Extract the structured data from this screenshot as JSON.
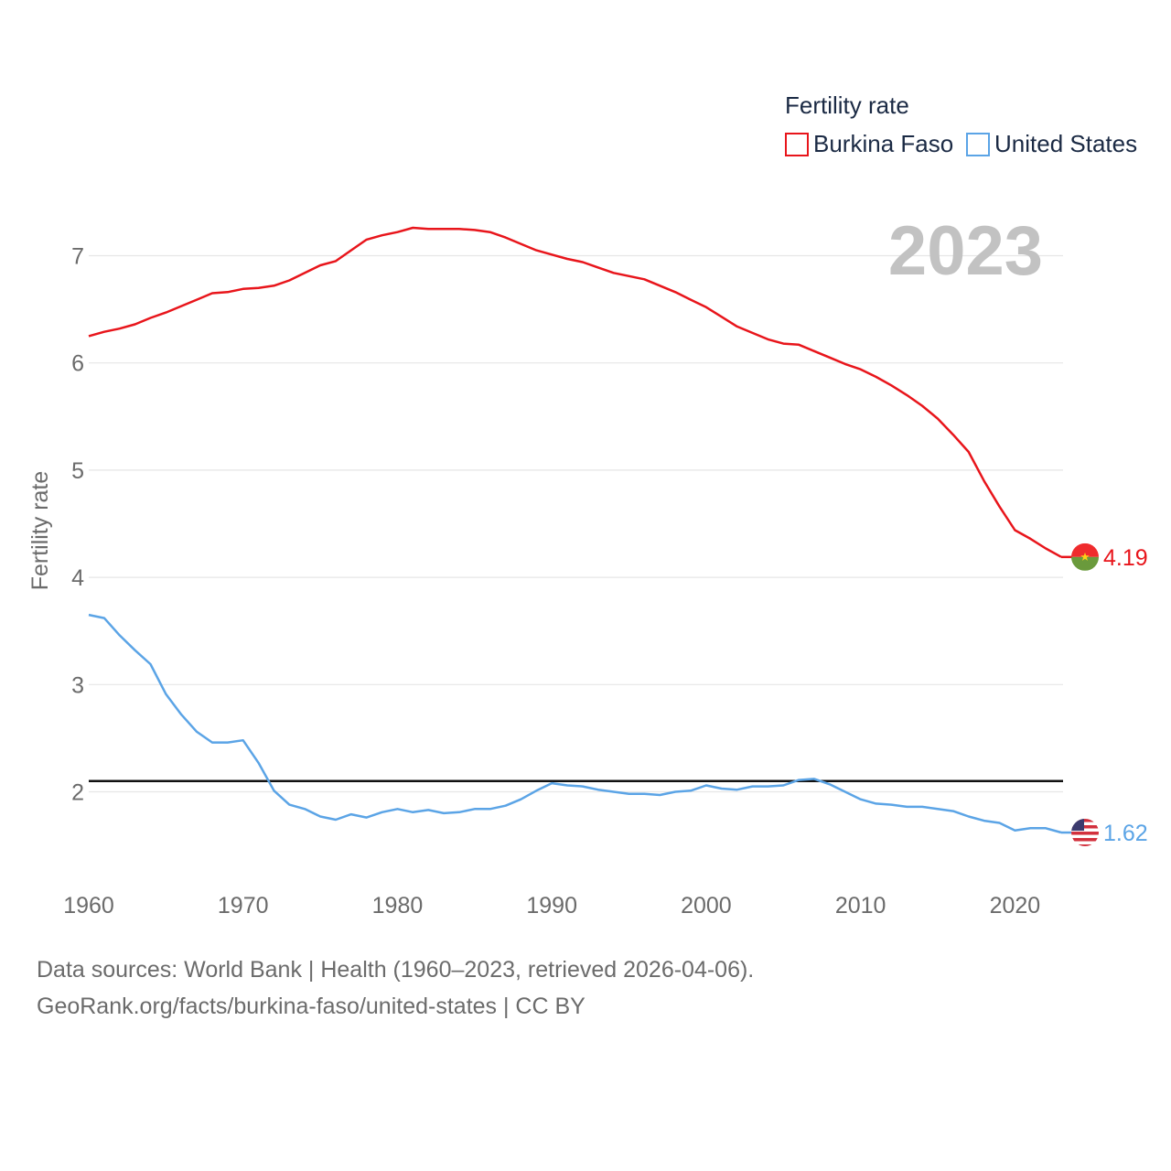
{
  "chart_data": {
    "type": "line",
    "title": "",
    "legend_title": "Fertility rate",
    "legend_position": "top-right",
    "year_label": "2023",
    "xlabel": "",
    "ylabel": "Fertility rate",
    "xlim": [
      1960,
      2023
    ],
    "ylim": [
      1.2,
      7.6
    ],
    "x_ticks": [
      1960,
      1970,
      1980,
      1990,
      2000,
      2010,
      2020
    ],
    "y_ticks": [
      2,
      3,
      4,
      5,
      6,
      7
    ],
    "reference_line": 2.1,
    "grid": true,
    "x": [
      1960,
      1961,
      1962,
      1963,
      1964,
      1965,
      1966,
      1967,
      1968,
      1969,
      1970,
      1971,
      1972,
      1973,
      1974,
      1975,
      1976,
      1977,
      1978,
      1979,
      1980,
      1981,
      1982,
      1983,
      1984,
      1985,
      1986,
      1987,
      1988,
      1989,
      1990,
      1991,
      1992,
      1993,
      1994,
      1995,
      1996,
      1997,
      1998,
      1999,
      2000,
      2001,
      2002,
      2003,
      2004,
      2005,
      2006,
      2007,
      2008,
      2009,
      2010,
      2011,
      2012,
      2013,
      2014,
      2015,
      2016,
      2017,
      2018,
      2019,
      2020,
      2021,
      2022,
      2023
    ],
    "series": [
      {
        "name": "Burkina Faso",
        "color": "#e8151b",
        "end_label": "4.19",
        "values": [
          6.25,
          6.29,
          6.32,
          6.36,
          6.42,
          6.47,
          6.53,
          6.59,
          6.65,
          6.66,
          6.69,
          6.7,
          6.72,
          6.77,
          6.84,
          6.91,
          6.95,
          7.05,
          7.15,
          7.19,
          7.22,
          7.26,
          7.25,
          7.25,
          7.25,
          7.24,
          7.22,
          7.17,
          7.11,
          7.05,
          7.01,
          6.97,
          6.94,
          6.89,
          6.84,
          6.81,
          6.78,
          6.72,
          6.66,
          6.59,
          6.52,
          6.43,
          6.34,
          6.28,
          6.22,
          6.18,
          6.17,
          6.11,
          6.05,
          5.99,
          5.94,
          5.87,
          5.79,
          5.7,
          5.6,
          5.48,
          5.33,
          5.17,
          4.9,
          4.66,
          4.44,
          4.36,
          4.27,
          4.19
        ]
      },
      {
        "name": "United States",
        "color": "#5ba4e6",
        "end_label": "1.62",
        "values": [
          3.65,
          3.62,
          3.46,
          3.32,
          3.19,
          2.91,
          2.72,
          2.56,
          2.46,
          2.46,
          2.48,
          2.27,
          2.01,
          1.88,
          1.84,
          1.77,
          1.74,
          1.79,
          1.76,
          1.81,
          1.84,
          1.81,
          1.83,
          1.8,
          1.81,
          1.84,
          1.84,
          1.87,
          1.93,
          2.01,
          2.08,
          2.06,
          2.05,
          2.02,
          2.0,
          1.98,
          1.98,
          1.97,
          2.0,
          2.01,
          2.06,
          2.03,
          2.02,
          2.05,
          2.05,
          2.06,
          2.11,
          2.12,
          2.07,
          2.0,
          1.93,
          1.89,
          1.88,
          1.86,
          1.86,
          1.84,
          1.82,
          1.77,
          1.73,
          1.71,
          1.64,
          1.66,
          1.66,
          1.62
        ]
      }
    ]
  },
  "footer": {
    "line1": "Data sources: World Bank | Health (1960–2023, retrieved 2026-04-06).",
    "line2": "GeoRank.org/facts/burkina-faso/united-states | CC BY"
  }
}
